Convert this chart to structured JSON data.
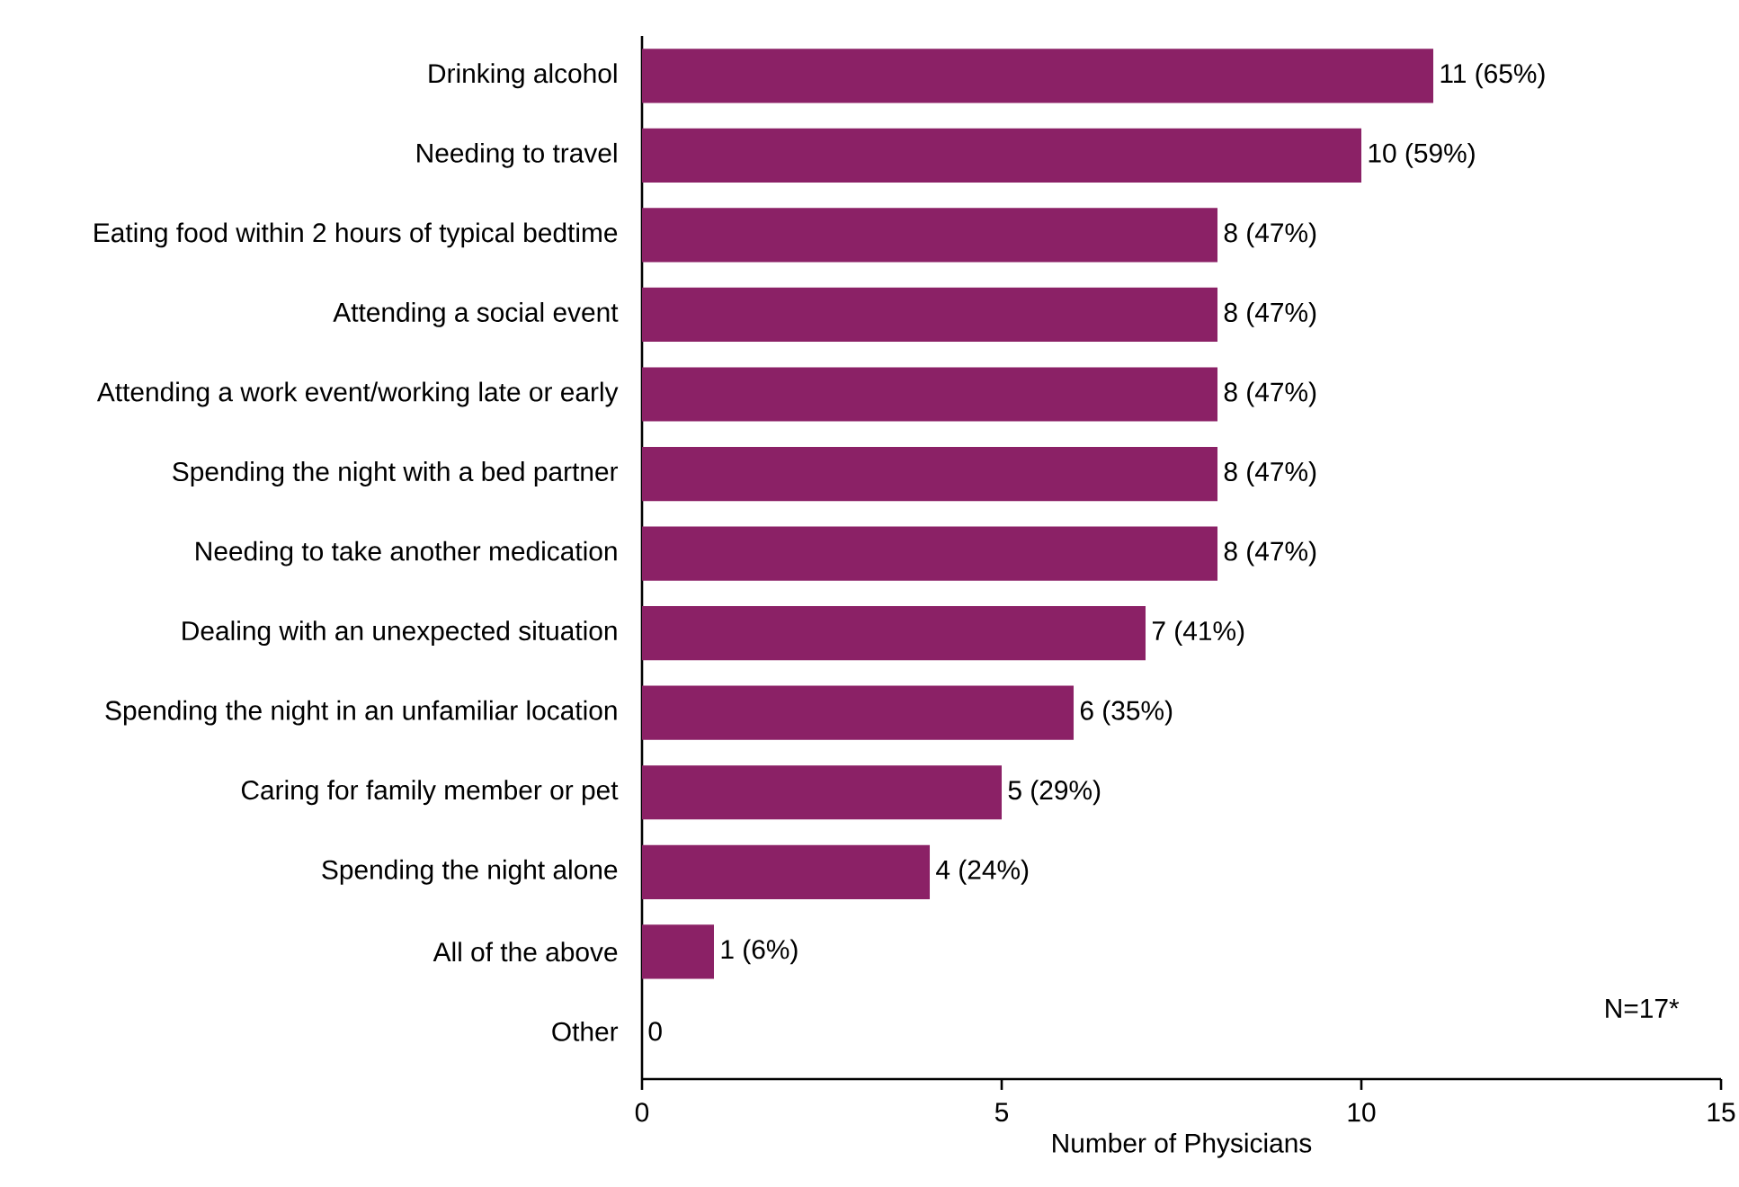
{
  "chart_data": {
    "type": "bar",
    "orientation": "horizontal",
    "xlabel": "Number of Physicians",
    "categories": [
      "Drinking alcohol",
      "Needing to travel",
      "Eating food within 2 hours of typical bedtime",
      "Attending a social event",
      "Attending a work event/working late or early",
      "Spending the night with a bed partner",
      "Needing to take another medication",
      "Dealing with an unexpected situation",
      "Spending the night in an unfamiliar location",
      "Caring for family member or pet",
      "Spending the night alone",
      "All of the above",
      "Other"
    ],
    "values": [
      11,
      10,
      8,
      8,
      8,
      8,
      8,
      7,
      6,
      5,
      4,
      1,
      0
    ],
    "value_labels": [
      "11 (65%)",
      "10 (59%)",
      "8 (47%)",
      "8 (47%)",
      "8 (47%)",
      "8 (47%)",
      "8 (47%)",
      "7 (41%)",
      "6 (35%)",
      "5 (29%)",
      "4 (24%)",
      "1 (6%)",
      "0"
    ],
    "color": "#8b2166",
    "xlim": [
      0,
      15
    ],
    "xticks": [
      0,
      5,
      10,
      15
    ],
    "annotations": [
      "N=17*"
    ]
  }
}
